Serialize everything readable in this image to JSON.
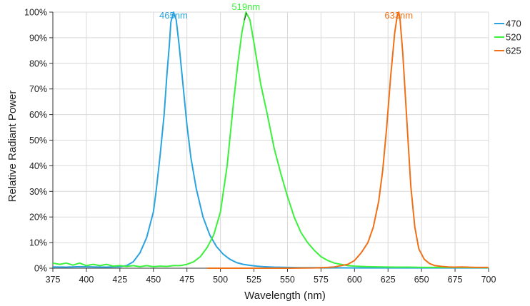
{
  "chart_data": {
    "type": "line",
    "xlabel": "Wavelength (nm)",
    "ylabel": "Relative Radiant Power",
    "xlim": [
      375,
      700
    ],
    "ylim": [
      0,
      100
    ],
    "x_ticks": [
      375,
      400,
      425,
      450,
      475,
      500,
      525,
      550,
      575,
      600,
      625,
      650,
      675,
      700
    ],
    "y_ticks": [
      "0%",
      "10%",
      "20%",
      "30%",
      "40%",
      "50%",
      "60%",
      "70%",
      "80%",
      "90%",
      "100%"
    ],
    "grid": true,
    "legend": "right",
    "series": [
      {
        "name": "470",
        "color": "#2aa3df",
        "peak_label": "465nm",
        "peak_x": 465,
        "x": [
          375,
          385,
          395,
          405,
          415,
          425,
          430,
          435,
          440,
          445,
          450,
          452,
          455,
          458,
          460,
          462,
          463,
          465,
          467,
          469,
          472,
          475,
          478,
          482,
          487,
          492,
          497,
          502,
          507,
          512,
          517,
          522,
          527,
          532,
          540,
          550,
          560,
          575,
          600,
          625,
          650,
          675,
          700
        ],
        "y": [
          0.5,
          0.4,
          0.6,
          0.5,
          0.4,
          0.6,
          1,
          2.5,
          6,
          12,
          22,
          30,
          44,
          60,
          75,
          88,
          96,
          100,
          97,
          88,
          72,
          56,
          43,
          31,
          20,
          13,
          8.5,
          5.5,
          3.5,
          2.2,
          1.5,
          1.1,
          0.8,
          0.6,
          0.4,
          0.3,
          0.2,
          0.2,
          0.1,
          0.1,
          0.1,
          0.1,
          0.1
        ]
      },
      {
        "name": "520",
        "color": "#3cf03c",
        "peak_label": "519nm",
        "peak_x": 519,
        "x": [
          375,
          380,
          385,
          390,
          395,
          400,
          405,
          410,
          415,
          420,
          425,
          430,
          435,
          440,
          445,
          450,
          455,
          460,
          465,
          470,
          475,
          480,
          485,
          490,
          495,
          500,
          505,
          510,
          513,
          516,
          519,
          522,
          525,
          530,
          535,
          540,
          545,
          550,
          555,
          560,
          565,
          570,
          575,
          580,
          585,
          590,
          595,
          600,
          610,
          620,
          630,
          640,
          650,
          660,
          675,
          700
        ],
        "y": [
          2,
          1.5,
          2,
          1.2,
          2,
          1,
          1.5,
          1,
          1.5,
          0.8,
          1,
          0.7,
          1,
          0.6,
          1,
          0.6,
          0.8,
          0.7,
          1,
          1,
          1.5,
          2.5,
          4.5,
          8,
          13,
          22,
          40,
          66,
          80,
          92,
          100,
          97,
          88,
          72,
          60,
          47,
          37,
          28,
          20,
          14,
          10,
          7,
          4.5,
          3,
          2,
          1.5,
          1,
          0.8,
          0.6,
          0.5,
          0.4,
          0.4,
          0.3,
          0.3,
          0.3,
          0.2
        ]
      },
      {
        "name": "625",
        "color": "#f07018",
        "peak_label": "633nm",
        "peak_x": 633,
        "x": [
          490,
          520,
          550,
          570,
          580,
          585,
          590,
          595,
          600,
          605,
          610,
          614,
          618,
          621,
          624,
          627,
          630,
          632,
          633,
          634,
          636,
          639,
          642,
          645,
          648,
          652,
          656,
          660,
          665,
          670,
          675,
          680,
          690,
          700
        ],
        "y": [
          0,
          0,
          0,
          0.1,
          0.3,
          0.5,
          1,
          1.5,
          3,
          6,
          10,
          16,
          26,
          38,
          55,
          75,
          92,
          99,
          100,
          97,
          84,
          58,
          32,
          16,
          7.5,
          3.5,
          1.8,
          1,
          0.7,
          0.5,
          0.4,
          0.5,
          0.3,
          0.3
        ]
      }
    ]
  }
}
